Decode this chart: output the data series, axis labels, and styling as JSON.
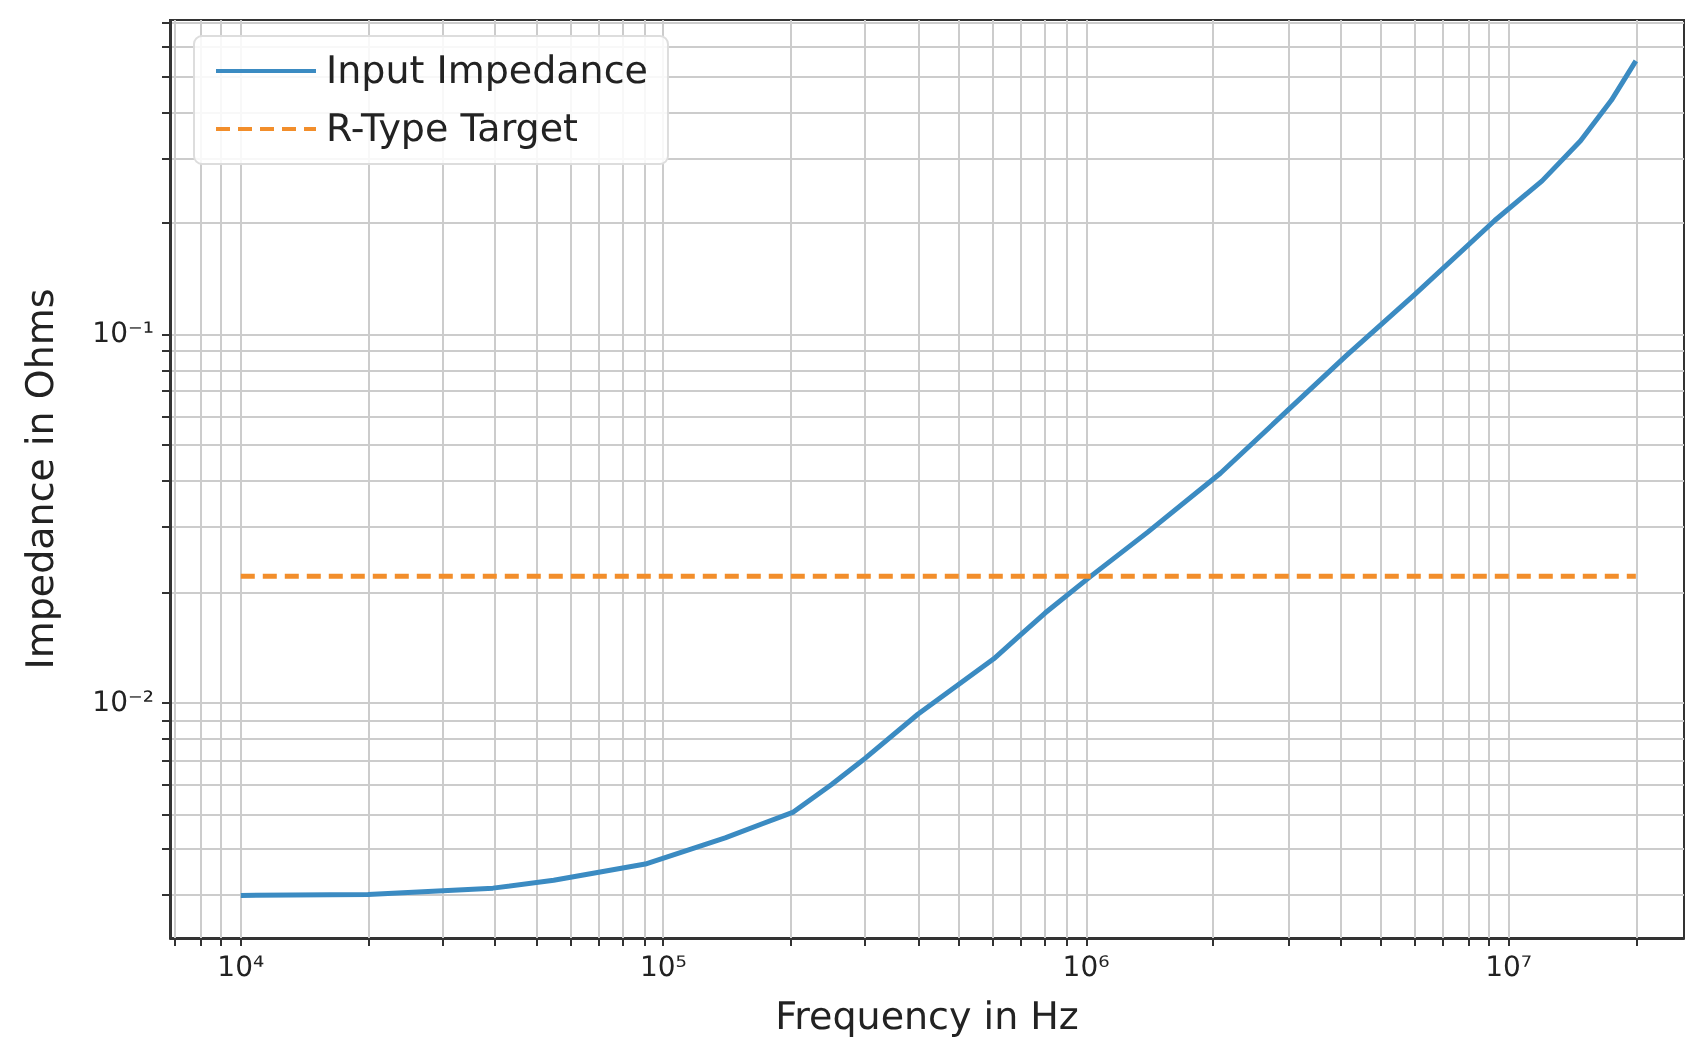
{
  "chart_data": {
    "type": "line",
    "xlabel": "Frequency in Hz",
    "ylabel": "Impedance in Ohms",
    "log": "xy",
    "grid": true,
    "legend": "top left",
    "marker": "none",
    "xlim": [
      6800,
      26000000
    ],
    "ylim": [
      0.0023,
      0.71
    ],
    "xticks": [
      {
        "value": 7000,
        "label": null
      },
      {
        "value": 8000,
        "label": null
      },
      {
        "value": 9000,
        "label": null
      },
      {
        "value": 10000,
        "label": "10⁴"
      },
      {
        "value": 20000,
        "label": null
      },
      {
        "value": 30000,
        "label": null
      },
      {
        "value": 40000,
        "label": null
      },
      {
        "value": 50000,
        "label": null
      },
      {
        "value": 60000,
        "label": null
      },
      {
        "value": 70000,
        "label": null
      },
      {
        "value": 80000,
        "label": null
      },
      {
        "value": 90000,
        "label": null
      },
      {
        "value": 100000,
        "label": "10⁵"
      },
      {
        "value": 200000,
        "label": null
      },
      {
        "value": 300000,
        "label": null
      },
      {
        "value": 400000,
        "label": null
      },
      {
        "value": 500000,
        "label": null
      },
      {
        "value": 600000,
        "label": null
      },
      {
        "value": 700000,
        "label": null
      },
      {
        "value": 800000,
        "label": null
      },
      {
        "value": 900000,
        "label": null
      },
      {
        "value": 1000000,
        "label": "10⁶"
      },
      {
        "value": 2000000,
        "label": null
      },
      {
        "value": 3000000,
        "label": null
      },
      {
        "value": 4000000,
        "label": null
      },
      {
        "value": 5000000,
        "label": null
      },
      {
        "value": 6000000,
        "label": null
      },
      {
        "value": 7000000,
        "label": null
      },
      {
        "value": 8000000,
        "label": null
      },
      {
        "value": 9000000,
        "label": null
      },
      {
        "value": 10000000,
        "label": "10⁷"
      },
      {
        "value": 20000000,
        "label": null
      }
    ],
    "yticks": [
      {
        "value": 0.003,
        "label": null
      },
      {
        "value": 0.004,
        "label": null
      },
      {
        "value": 0.005,
        "label": null
      },
      {
        "value": 0.006,
        "label": null
      },
      {
        "value": 0.007,
        "label": null
      },
      {
        "value": 0.008,
        "label": null
      },
      {
        "value": 0.009,
        "label": null
      },
      {
        "value": 0.01,
        "label": "10⁻²"
      },
      {
        "value": 0.02,
        "label": null
      },
      {
        "value": 0.03,
        "label": null
      },
      {
        "value": 0.04,
        "label": null
      },
      {
        "value": 0.05,
        "label": null
      },
      {
        "value": 0.06,
        "label": null
      },
      {
        "value": 0.07,
        "label": null
      },
      {
        "value": 0.08,
        "label": null
      },
      {
        "value": 0.09,
        "label": null
      },
      {
        "value": 0.1,
        "label": "10⁻¹"
      },
      {
        "value": 0.2,
        "label": null
      },
      {
        "value": 0.3,
        "label": null
      },
      {
        "value": 0.4,
        "label": null
      },
      {
        "value": 0.5,
        "label": null
      },
      {
        "value": 0.6,
        "label": null
      },
      {
        "value": 0.7,
        "label": null
      }
    ],
    "series": [
      {
        "name": "Input Impedance",
        "color": "#3b8bc2",
        "line_style": "solid",
        "x": [
          10000,
          20000,
          39500,
          55000,
          90600,
          140000,
          203000,
          250000,
          300000,
          400000,
          605000,
          800000,
          1020000,
          1400000,
          2080000,
          3000000,
          4130000,
          6000000,
          9270000,
          12000000,
          14800000,
          17500000,
          20000000
        ],
        "values": [
          0.003,
          0.00302,
          0.00314,
          0.0033,
          0.00365,
          0.0043,
          0.00505,
          0.006,
          0.00706,
          0.0093,
          0.01315,
          0.0175,
          0.0219,
          0.029,
          0.0419,
          0.062,
          0.0873,
          0.128,
          0.203,
          0.26,
          0.334,
          0.43,
          0.55
        ]
      },
      {
        "name": "R-Type Target",
        "color": "#f28e2b",
        "line_style": "dashed",
        "x": [
          10000,
          20000000
        ],
        "values": [
          0.022,
          0.022
        ]
      }
    ]
  }
}
